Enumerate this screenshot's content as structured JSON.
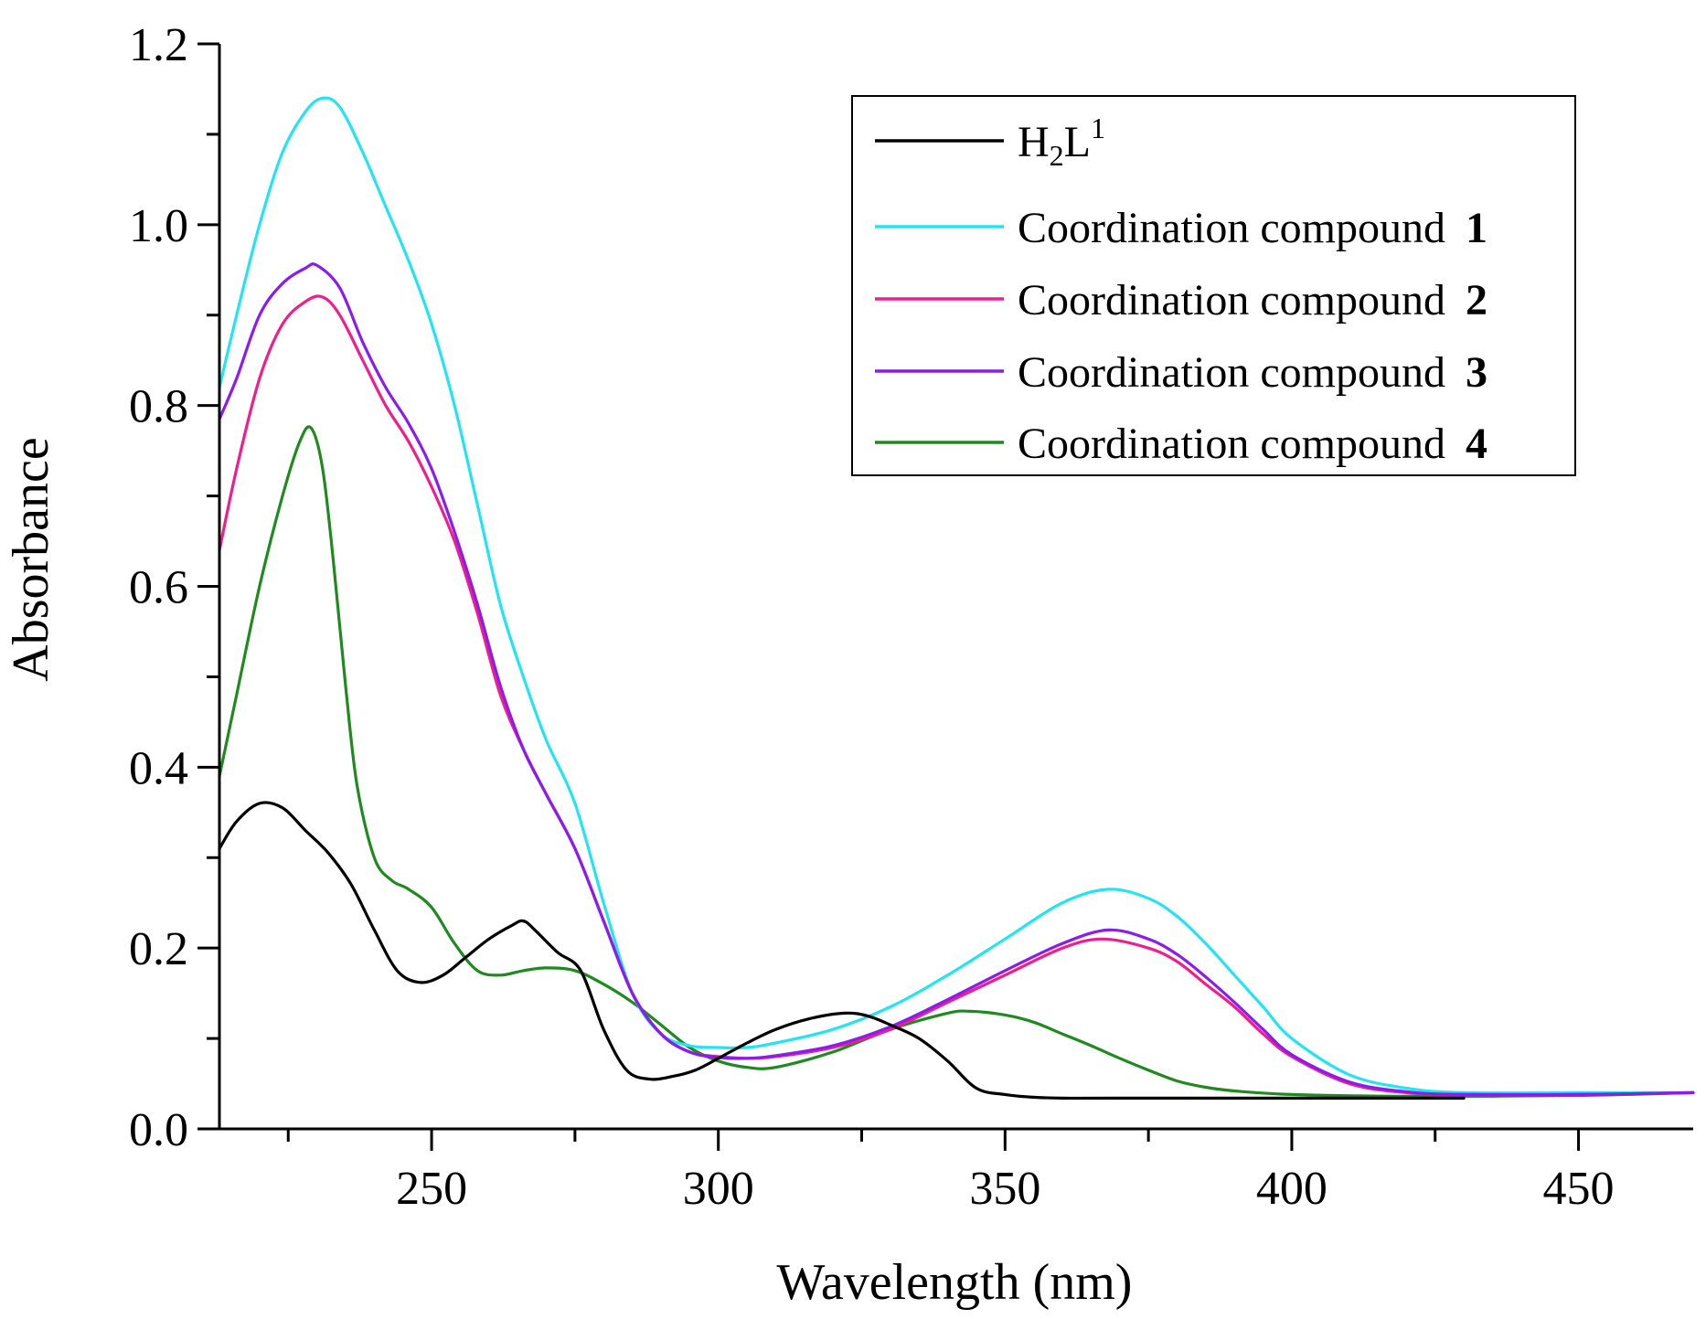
{
  "chart_data": {
    "type": "line",
    "xlabel": "Wavelength (nm)",
    "ylabel": "Absorbance",
    "xlim": [
      213,
      470
    ],
    "ylim": [
      0,
      1.2
    ],
    "xticks": [
      250,
      300,
      350,
      400,
      450
    ],
    "xticks_minor": [
      225,
      275,
      325,
      375,
      425
    ],
    "yticks": [
      0.0,
      0.2,
      0.4,
      0.6,
      0.8,
      1.0,
      1.2
    ],
    "ytick_labels": [
      "0.0",
      "0.2",
      "0.4",
      "0.6",
      "0.8",
      "1.0",
      "1.2"
    ],
    "legend_position": "top-right",
    "series": [
      {
        "name": "H2L1",
        "label_main": "H",
        "label_sub": "2",
        "label_main2": "L",
        "label_sup": "1",
        "color": "#000000",
        "x": [
          213,
          216,
          220,
          224,
          228,
          232,
          236,
          240,
          244,
          248,
          252,
          256,
          260,
          264,
          266,
          268,
          272,
          276,
          280,
          284,
          288,
          292,
          296,
          300,
          305,
          310,
          316,
          322,
          326,
          330,
          335,
          340,
          345,
          350,
          355,
          360,
          370,
          400,
          430
        ],
        "y": [
          0.31,
          0.34,
          0.36,
          0.355,
          0.33,
          0.305,
          0.27,
          0.22,
          0.175,
          0.162,
          0.17,
          0.19,
          0.21,
          0.225,
          0.23,
          0.22,
          0.195,
          0.175,
          0.11,
          0.065,
          0.055,
          0.058,
          0.065,
          0.078,
          0.095,
          0.11,
          0.122,
          0.128,
          0.125,
          0.115,
          0.1,
          0.075,
          0.045,
          0.038,
          0.035,
          0.034,
          0.034,
          0.034,
          0.034
        ]
      },
      {
        "name": "Coordination compound 1",
        "label_main": "Coordination compound",
        "label_num": "1",
        "color": "#22E4F2",
        "x": [
          213,
          216,
          220,
          224,
          228,
          231,
          234,
          238,
          242,
          246,
          250,
          254,
          258,
          262,
          266,
          270,
          275,
          280,
          285,
          290,
          295,
          300,
          305,
          310,
          320,
          330,
          340,
          350,
          360,
          368,
          375,
          380,
          385,
          390,
          395,
          400,
          410,
          420,
          430,
          450,
          470
        ],
        "y": [
          0.82,
          0.9,
          1.0,
          1.08,
          1.125,
          1.14,
          1.13,
          1.08,
          1.02,
          0.96,
          0.89,
          0.8,
          0.69,
          0.58,
          0.5,
          0.43,
          0.36,
          0.25,
          0.15,
          0.105,
          0.092,
          0.09,
          0.09,
          0.095,
          0.11,
          0.135,
          0.17,
          0.21,
          0.25,
          0.265,
          0.255,
          0.235,
          0.205,
          0.17,
          0.135,
          0.1,
          0.06,
          0.045,
          0.04,
          0.04,
          0.04
        ]
      },
      {
        "name": "Coordination compound 2",
        "label_main": "Coordination compound",
        "label_num": "2",
        "color": "#F01E8C",
        "x": [
          213,
          216,
          220,
          224,
          228,
          231,
          234,
          238,
          242,
          246,
          250,
          254,
          258,
          262,
          266,
          270,
          275,
          280,
          285,
          290,
          295,
          300,
          305,
          310,
          320,
          330,
          340,
          350,
          360,
          367,
          375,
          380,
          385,
          390,
          395,
          400,
          410,
          420,
          430,
          450,
          470
        ],
        "y": [
          0.64,
          0.73,
          0.83,
          0.89,
          0.915,
          0.92,
          0.9,
          0.85,
          0.8,
          0.76,
          0.71,
          0.65,
          0.57,
          0.48,
          0.42,
          0.37,
          0.31,
          0.23,
          0.15,
          0.105,
          0.085,
          0.08,
          0.078,
          0.08,
          0.09,
          0.11,
          0.14,
          0.17,
          0.2,
          0.21,
          0.2,
          0.185,
          0.16,
          0.135,
          0.105,
          0.08,
          0.05,
          0.04,
          0.038,
          0.038,
          0.04
        ]
      },
      {
        "name": "Coordination compound 3",
        "label_main": "Coordination compound",
        "label_num": "3",
        "color": "#8A1CF0",
        "x": [
          213,
          216,
          220,
          224,
          228,
          230,
          234,
          238,
          242,
          246,
          250,
          254,
          258,
          262,
          266,
          270,
          275,
          280,
          285,
          290,
          295,
          300,
          305,
          310,
          320,
          330,
          340,
          350,
          360,
          368,
          375,
          380,
          385,
          390,
          395,
          400,
          410,
          420,
          430,
          450,
          470
        ],
        "y": [
          0.785,
          0.83,
          0.9,
          0.935,
          0.952,
          0.955,
          0.93,
          0.87,
          0.82,
          0.78,
          0.73,
          0.66,
          0.58,
          0.49,
          0.42,
          0.37,
          0.31,
          0.23,
          0.15,
          0.105,
          0.085,
          0.079,
          0.078,
          0.081,
          0.092,
          0.113,
          0.143,
          0.175,
          0.205,
          0.22,
          0.21,
          0.193,
          0.168,
          0.14,
          0.11,
          0.082,
          0.052,
          0.041,
          0.038,
          0.038,
          0.04
        ]
      },
      {
        "name": "Coordination compound 4",
        "label_main": "Coordination compound",
        "label_num": "4",
        "color": "#1F8A1F",
        "x": [
          213,
          216,
          220,
          224,
          227,
          229,
          231,
          233,
          235,
          237,
          240,
          243,
          246,
          250,
          254,
          258,
          262,
          266,
          270,
          275,
          280,
          285,
          290,
          295,
          300,
          305,
          310,
          320,
          330,
          340,
          344,
          350,
          355,
          360,
          365,
          370,
          375,
          380,
          385,
          390,
          400,
          420,
          450,
          470
        ],
        "y": [
          0.39,
          0.48,
          0.6,
          0.7,
          0.76,
          0.775,
          0.73,
          0.62,
          0.49,
          0.38,
          0.3,
          0.275,
          0.265,
          0.245,
          0.205,
          0.175,
          0.17,
          0.175,
          0.178,
          0.175,
          0.16,
          0.14,
          0.115,
          0.09,
          0.075,
          0.068,
          0.068,
          0.085,
          0.11,
          0.128,
          0.13,
          0.126,
          0.118,
          0.105,
          0.092,
          0.078,
          0.065,
          0.053,
          0.046,
          0.042,
          0.038,
          0.036,
          0.037,
          0.04
        ]
      }
    ]
  }
}
